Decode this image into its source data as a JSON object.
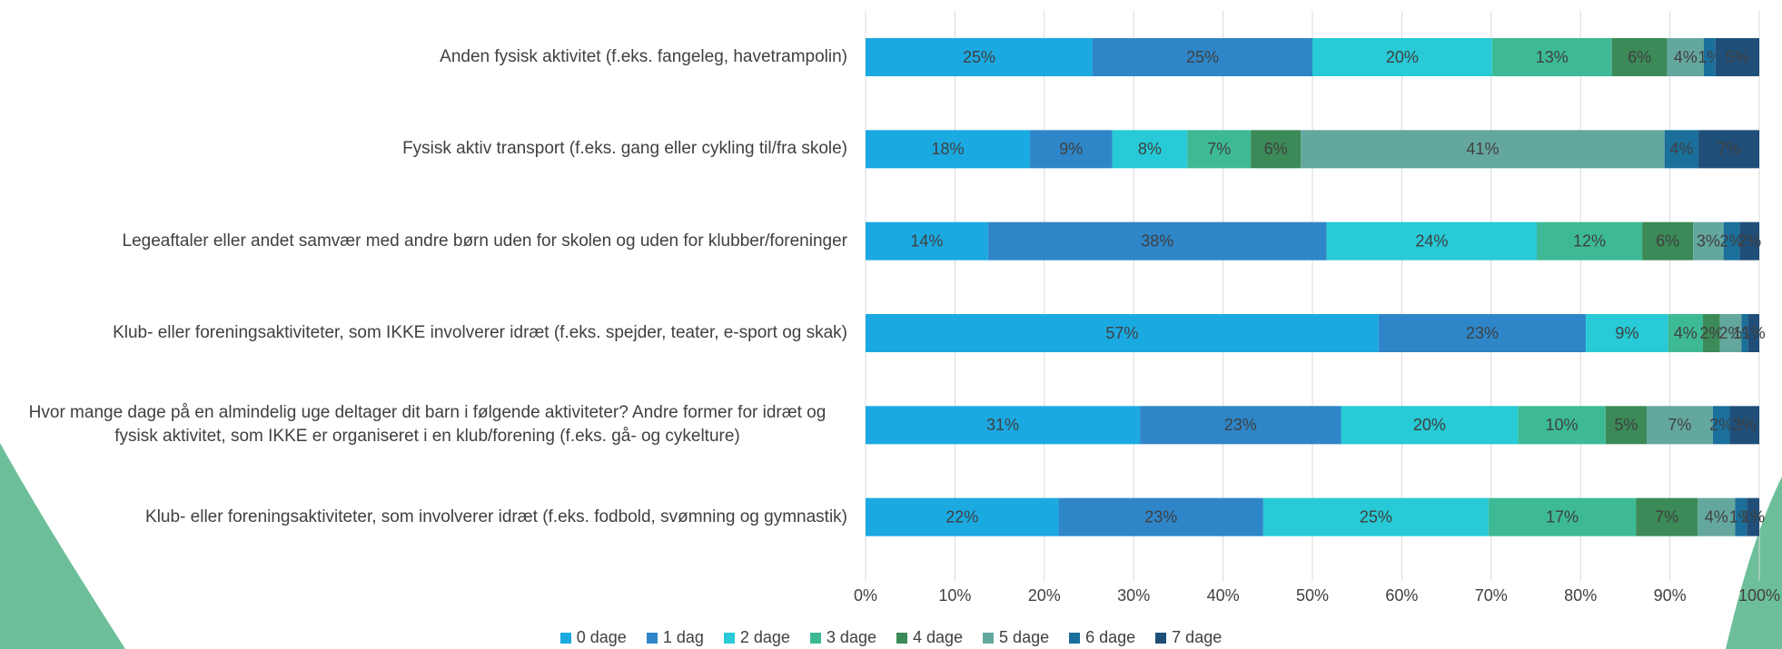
{
  "chart_data": {
    "type": "stacked-barh",
    "categories": [
      "Anden fysisk aktivitet (f.eks. fangeleg, havetrampolin)",
      "Fysisk aktiv transport (f.eks. gang eller cykling til/fra skole)",
      "Legeaftaler eller andet samvær med andre børn uden for skolen og uden for klubber/foreninger",
      "Klub- eller foreningsaktiviteter, som IKKE involverer idræt (f.eks. spejder, teater, e-sport og skak)",
      "Hvor mange dage på en almindelig uge deltager dit barn i følgende aktiviteter?     Andre former for idræt og fysisk aktivitet, som IKKE er organiseret i en klub/forening (f.eks. gå- og cykelture)",
      "Klub- eller foreningsaktiviteter, som involverer idræt (f.eks. fodbold, svømning og gymnastik)"
    ],
    "series": [
      {
        "name": "0 dage",
        "color": "#1ba9e1",
        "values": [
          25.4,
          18.4,
          13.7,
          57.4,
          30.7,
          21.6
        ],
        "value_labels": [
          "25%",
          "18%",
          "14%",
          "57%",
          "31%",
          "22%"
        ]
      },
      {
        "name": "1 dag",
        "color": "#2e86c8",
        "values": [
          24.6,
          9.2,
          37.9,
          23.2,
          22.5,
          22.9
        ],
        "value_labels": [
          "25%",
          "9%",
          "38%",
          "23%",
          "23%",
          "23%"
        ]
      },
      {
        "name": "2 dage",
        "color": "#27cad6",
        "values": [
          20.1,
          8.4,
          23.5,
          9.2,
          19.8,
          25.2
        ],
        "value_labels": [
          "20%",
          "8%",
          "24%",
          "9%",
          "20%",
          "25%"
        ]
      },
      {
        "name": "3 dage",
        "color": "#3dba95",
        "values": [
          13.4,
          7.1,
          11.8,
          3.9,
          9.8,
          16.5
        ],
        "value_labels": [
          "13%",
          "7%",
          "12%",
          "4%",
          "10%",
          "17%"
        ]
      },
      {
        "name": "4 dage",
        "color": "#3b8a57",
        "values": [
          6.2,
          5.6,
          5.7,
          1.9,
          4.6,
          6.9
        ],
        "value_labels": [
          "6%",
          "6%",
          "6%",
          "2%",
          "5%",
          "7%"
        ]
      },
      {
        "name": "5 dage",
        "color": "#64a79e",
        "values": [
          4.1,
          40.7,
          3.4,
          2.4,
          7.4,
          4.2
        ],
        "value_labels": [
          "4%",
          "41%",
          "3%",
          "2%",
          "7%",
          "4%"
        ]
      },
      {
        "name": "6 dage",
        "color": "#1a6f9b",
        "values": [
          1.3,
          3.8,
          1.8,
          0.7,
          1.9,
          1.3
        ],
        "value_labels": [
          "1%",
          "4%",
          "2%",
          "1%",
          "2%",
          "1%"
        ]
      },
      {
        "name": "7 dage",
        "color": "#1f4e79",
        "values": [
          4.9,
          6.8,
          2.2,
          1.3,
          3.3,
          1.4
        ],
        "value_labels": [
          "5%",
          "7%",
          "2%",
          "1%",
          "3%",
          "1%"
        ]
      }
    ],
    "xlim": [
      0,
      100
    ],
    "xticks": [
      {
        "value": 0,
        "label": "0%"
      },
      {
        "value": 10,
        "label": "10%"
      },
      {
        "value": 20,
        "label": "20%"
      },
      {
        "value": 30,
        "label": "30%"
      },
      {
        "value": 40,
        "label": "40%"
      },
      {
        "value": 50,
        "label": "50%"
      },
      {
        "value": 60,
        "label": "60%"
      },
      {
        "value": 70,
        "label": "70%"
      },
      {
        "value": 80,
        "label": "80%"
      },
      {
        "value": 90,
        "label": "90%"
      },
      {
        "value": 100,
        "label": "100%"
      }
    ],
    "grid": true
  }
}
